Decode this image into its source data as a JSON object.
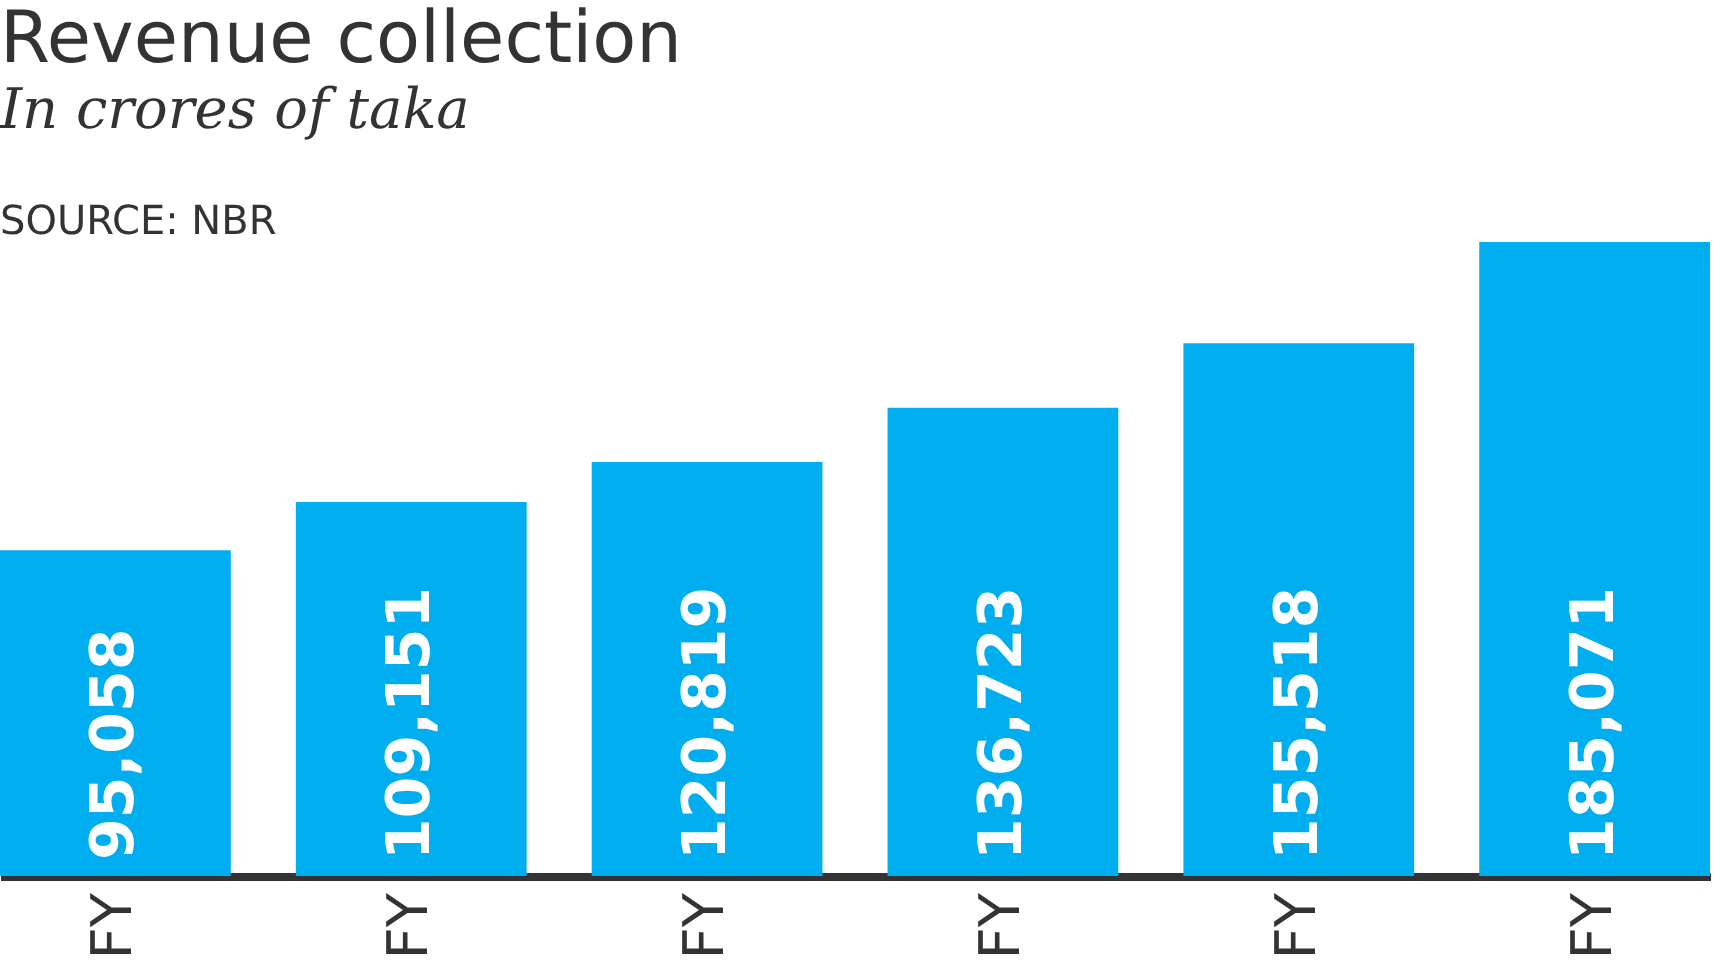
{
  "chart_data": {
    "type": "bar",
    "title": "Revenue collection",
    "subtitle": "In crores of taka",
    "annotations": [
      "SOURCE: NBR"
    ],
    "categories": [
      "FY",
      "FY",
      "FY",
      "FY",
      "FY",
      "FY"
    ],
    "values": [
      95058,
      109151,
      120819,
      136723,
      155518,
      185071
    ],
    "value_labels": [
      "95,058",
      "109,151",
      "120,819",
      "136,723",
      "155,518",
      "185,071"
    ],
    "color": "#00aeef"
  }
}
